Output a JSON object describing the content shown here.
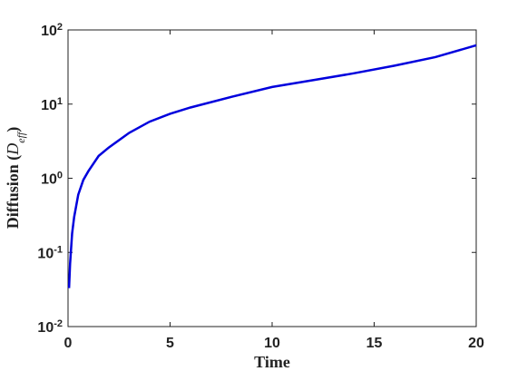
{
  "chart_data": {
    "type": "line",
    "x_label": "Time",
    "y_label": "Diffusion (D_eff)",
    "x": [
      0.05,
      0.1,
      0.2,
      0.3,
      0.5,
      0.75,
      1,
      1.5,
      2,
      3,
      4,
      5,
      6,
      8,
      10,
      12,
      14,
      16,
      18,
      20
    ],
    "series": [
      {
        "color": "#0000dd",
        "values": [
          0.033,
          0.07,
          0.18,
          0.3,
          0.6,
          0.95,
          1.25,
          2,
          2.6,
          4.1,
          5.8,
          7.4,
          9,
          12.5,
          17,
          21,
          26,
          33,
          43,
          62
        ]
      }
    ],
    "xlim": [
      0,
      20
    ],
    "xticks": [
      0,
      5,
      10,
      15,
      20
    ],
    "ylim": [
      0.01,
      100
    ],
    "log_y": true,
    "yticks": [
      {
        "value": 0.01,
        "label": "10^-2"
      },
      {
        "value": 0.1,
        "label": "10^-1"
      },
      {
        "value": 1,
        "label": "10^0"
      },
      {
        "value": 10,
        "label": "10^1"
      },
      {
        "value": 100,
        "label": "10^2"
      }
    ]
  }
}
